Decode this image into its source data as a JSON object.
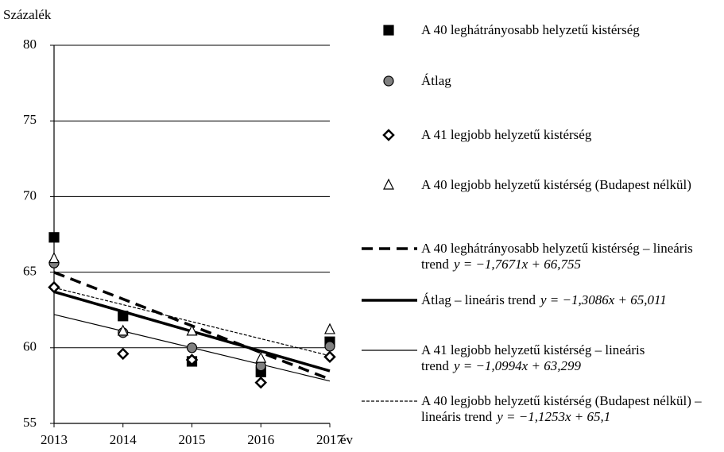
{
  "chart_data": {
    "type": "scatter",
    "y_label": "Százalék",
    "x_label": "év",
    "x": [
      2013,
      2014,
      2015,
      2016,
      2017
    ],
    "xlim": [
      2013,
      2017
    ],
    "xticks": [
      2013,
      2014,
      2015,
      2016,
      2017
    ],
    "ylim": [
      55,
      80
    ],
    "yticks": [
      55,
      60,
      65,
      70,
      75,
      80
    ],
    "grid": true,
    "series": [
      {
        "name": "A 40 leghátrányosabb helyzetű kistérség",
        "marker": "square",
        "color": "#000000",
        "values": [
          67.3,
          62.1,
          59.1,
          58.4,
          60.4
        ]
      },
      {
        "name": "Átlag",
        "marker": "circle",
        "color": "#808080",
        "values": [
          65.6,
          61.0,
          60.0,
          58.8,
          60.1
        ]
      },
      {
        "name": "A 41 legjobb helyzetű kistérség",
        "marker": "diamond",
        "color": "#ffffff",
        "values": [
          64.0,
          59.6,
          59.2,
          57.7,
          59.4
        ]
      },
      {
        "name": "A 40 legjobb helyzetű kistérség (Budapest nélkül)",
        "marker": "triangle",
        "color": "#ffffff",
        "values": [
          65.9,
          61.1,
          61.1,
          59.3,
          61.2
        ]
      }
    ],
    "trends": [
      {
        "name": "A 40 leghátrányosabb helyzetű kistérség – lineáris trend",
        "equation": "y = −1,7671x + 66,755",
        "slope": -1.7671,
        "intercept": 66.755,
        "style": "dashed"
      },
      {
        "name": "Átlag – lineáris trend",
        "equation": "y = −1,3086x + 65,011",
        "slope": -1.3086,
        "intercept": 65.011,
        "style": "thick"
      },
      {
        "name": "A 41 legjobb helyzetű kistérség – lineáris trend",
        "equation": "y = −1,0994x + 63,299",
        "slope": -1.0994,
        "intercept": 63.299,
        "style": "thin"
      },
      {
        "name": "A 40 legjobb helyzetű kistérség (Budapest nélkül) – lineáris trend",
        "equation": "y = −1,1253x + 65,1",
        "slope": -1.1253,
        "intercept": 65.1,
        "style": "dotted"
      }
    ]
  }
}
